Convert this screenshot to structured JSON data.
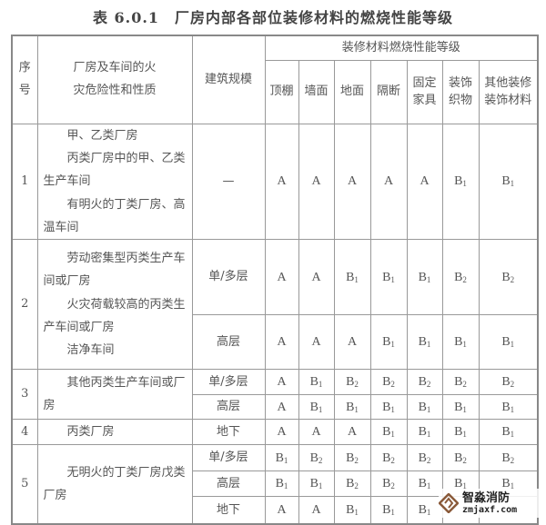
{
  "title": "表 6.0.1　厂房内部各部位装修材料的燃烧性能等级",
  "headers": {
    "no": "序号",
    "nature": "厂房及车间的火灾危险性和性质",
    "scale": "建筑规模",
    "group": "装修材料燃烧性能等级",
    "cols": [
      "顶棚",
      "墙面",
      "地面",
      "隔断",
      "固定家具",
      "装饰织物",
      "其他装修装饰材料"
    ]
  },
  "groups": [
    {
      "no": "1",
      "nature_lines": [
        "甲、乙类厂房",
        "丙类厂房中的甲、乙类生产车间",
        "有明火的丁类厂房、高温车间"
      ],
      "rows": [
        {
          "scale": "—",
          "values": [
            "A",
            "A",
            "A",
            "A",
            "A",
            "B1",
            "B1"
          ]
        }
      ]
    },
    {
      "no": "2",
      "nature_lines": [
        "劳动密集型丙类生产车间或厂房",
        "火灾荷载较高的丙类生产车间或厂房",
        "洁净车间"
      ],
      "rows": [
        {
          "scale": "单/多层",
          "values": [
            "A",
            "A",
            "B1",
            "B1",
            "B1",
            "B2",
            "B2"
          ]
        },
        {
          "scale": "高层",
          "values": [
            "A",
            "A",
            "A",
            "B1",
            "B1",
            "B1",
            "B1"
          ]
        }
      ]
    },
    {
      "no": "3",
      "nature_lines": [
        "其他丙类生产车间或厂房"
      ],
      "rows": [
        {
          "scale": "单/多层",
          "values": [
            "A",
            "B1",
            "B2",
            "B2",
            "B2",
            "B2",
            "B2"
          ]
        },
        {
          "scale": "高层",
          "values": [
            "A",
            "B1",
            "B1",
            "B1",
            "B1",
            "B1",
            "B1"
          ]
        }
      ]
    },
    {
      "no": "4",
      "nature_lines": [
        "丙类厂房"
      ],
      "rows": [
        {
          "scale": "地下",
          "values": [
            "A",
            "A",
            "A",
            "B1",
            "B1",
            "B1",
            "B1"
          ]
        }
      ]
    },
    {
      "no": "5",
      "nature_lines": [
        "无明火的丁类厂房戊类厂房"
      ],
      "rows": [
        {
          "scale": "单/多层",
          "values": [
            "B1",
            "B2",
            "B2",
            "B2",
            "B2",
            "B2",
            "B2"
          ]
        },
        {
          "scale": "高层",
          "values": [
            "B1",
            "B1",
            "B2",
            "B2",
            "B1",
            "B1",
            "B1"
          ]
        },
        {
          "scale": "地下",
          "values": [
            "A",
            "A",
            "B1",
            "B1",
            "B1",
            "",
            ""
          ]
        }
      ]
    }
  ],
  "watermark": {
    "name": "智淼消防",
    "url": "zmjaxf.com",
    "color": "#8a5a3a"
  }
}
